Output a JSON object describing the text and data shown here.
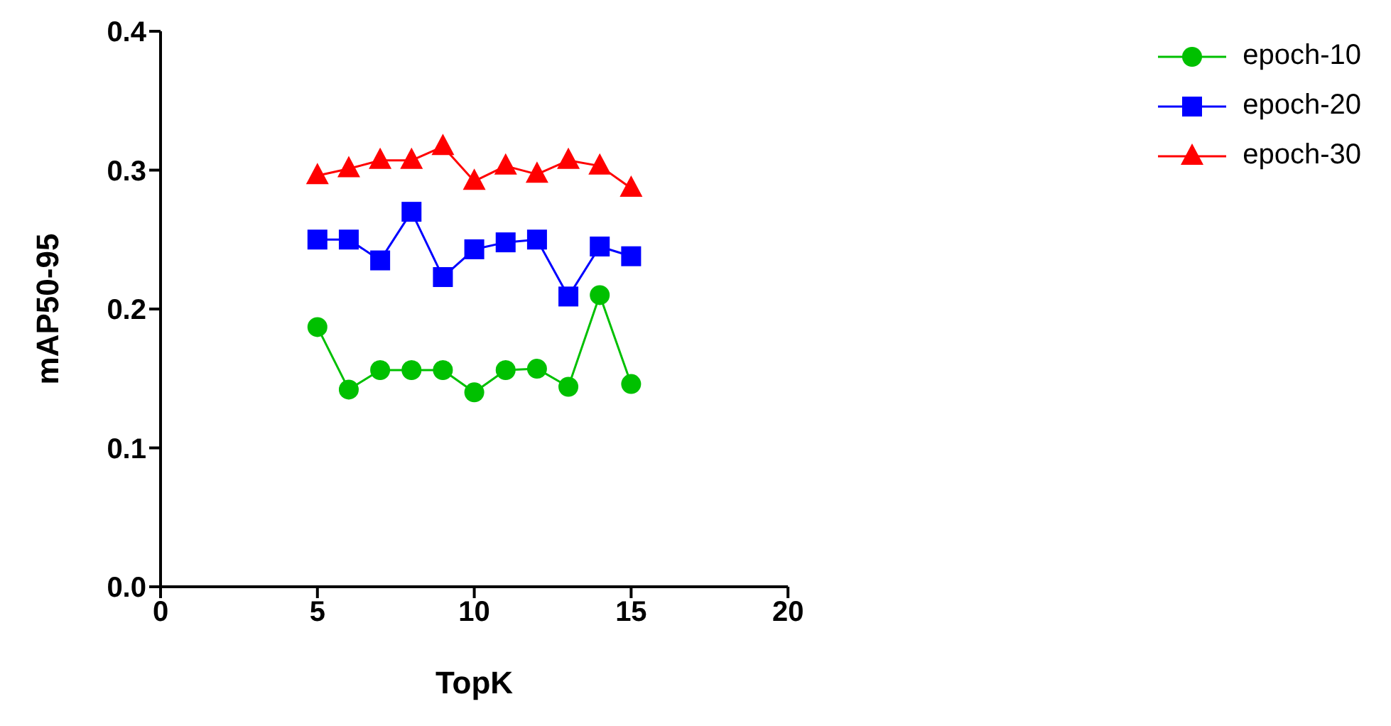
{
  "chart_data": {
    "type": "line",
    "xlabel": "TopK",
    "ylabel": "mAP50-95",
    "x": [
      5,
      6,
      7,
      8,
      9,
      10,
      11,
      12,
      13,
      14,
      15
    ],
    "series": [
      {
        "name": "epoch-10",
        "color": "#00c000",
        "marker": "circle",
        "values": [
          0.187,
          0.142,
          0.156,
          0.156,
          0.156,
          0.14,
          0.156,
          0.157,
          0.144,
          0.21,
          0.146
        ]
      },
      {
        "name": "epoch-20",
        "color": "#0000ff",
        "marker": "square",
        "values": [
          0.25,
          0.25,
          0.235,
          0.27,
          0.223,
          0.243,
          0.248,
          0.25,
          0.209,
          0.245,
          0.238
        ]
      },
      {
        "name": "epoch-30",
        "color": "#ff0000",
        "marker": "triangle",
        "values": [
          0.296,
          0.301,
          0.307,
          0.307,
          0.317,
          0.292,
          0.303,
          0.297,
          0.307,
          0.303,
          0.287
        ]
      }
    ],
    "xlim": [
      0,
      20
    ],
    "xticks": [
      0,
      5,
      10,
      15,
      20
    ],
    "ylim": [
      0,
      0.4
    ],
    "yticks": [
      {
        "value": 0,
        "label": "0.0"
      },
      {
        "value": 0.1,
        "label": "0.1"
      },
      {
        "value": 0.2,
        "label": "0.2"
      },
      {
        "value": 0.3,
        "label": "0.3"
      },
      {
        "value": 0.4,
        "label": "0.4"
      }
    ],
    "grid": false,
    "legend": "top right",
    "line_style": "solid"
  }
}
